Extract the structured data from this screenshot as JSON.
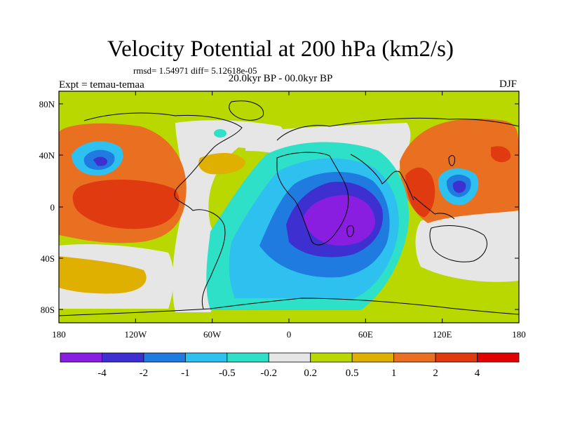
{
  "title": "Velocity Potential at 200 hPa (km2/s)",
  "stats": "rmsd= 1.54971 diff= 5.12618e-05",
  "expt": "Expt = temau-temaa",
  "period": "20.0kyr BP - 00.0kyr BP",
  "season": "DJF",
  "axes": {
    "lon_labels": [
      "180",
      "120W",
      "60W",
      "0",
      "60E",
      "120E",
      "180"
    ],
    "lat_labels": [
      "80N",
      "40N",
      "0",
      "40S",
      "80S"
    ]
  },
  "colorbar": {
    "labels": [
      "-4",
      "-2",
      "-1",
      "-0.5",
      "-0.2",
      "0.2",
      "0.5",
      "1",
      "2",
      "4"
    ],
    "colors": [
      "#8a1ee0",
      "#3d2fd0",
      "#1f7be0",
      "#2ec0ee",
      "#2ee0c8",
      "#e6e6e6",
      "#b8d800",
      "#e0b000",
      "#e87020",
      "#e03a10",
      "#e00000"
    ]
  },
  "palette": {
    "v4": "#8a1ee0",
    "v2": "#3d2fd0",
    "v1": "#1f7be0",
    "v05": "#2ec0ee",
    "v02": "#2ee0c8",
    "zero": "#e6e6e6",
    "p02": "#b8d800",
    "p05": "#e0b000",
    "p1": "#e87020",
    "p2": "#e03a10",
    "p4": "#e00000"
  }
}
